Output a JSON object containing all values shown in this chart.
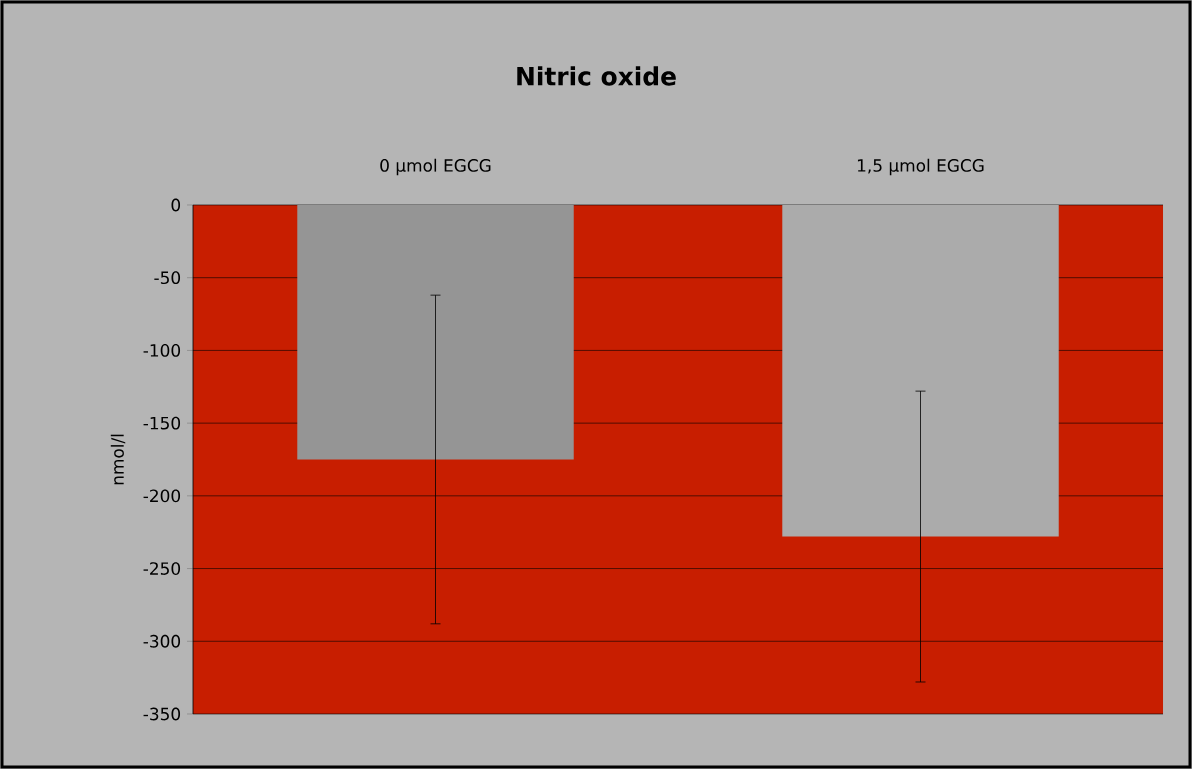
{
  "chart_data": {
    "type": "bar",
    "title": "Nitric oxide",
    "ylabel": "nmol/l",
    "categories": [
      "0 µmol EGCG",
      "1,5 µmol EGCG"
    ],
    "values": [
      -175,
      -228
    ],
    "errors": [
      113,
      100
    ],
    "colors": [
      "#959595",
      "#ababab"
    ],
    "ylim": [
      -350,
      0
    ],
    "yticks": [
      -350,
      -300,
      -250,
      -200,
      -150,
      -100,
      -50,
      0
    ],
    "grid": "y"
  }
}
